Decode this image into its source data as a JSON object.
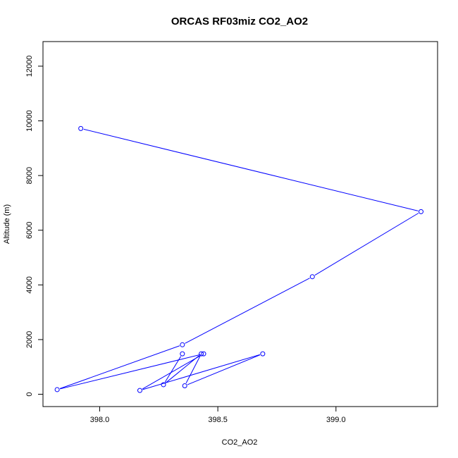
{
  "chart_data": {
    "type": "line",
    "title": "ORCAS RF03miz CO2_AO2",
    "xlabel": "CO2_AO2",
    "ylabel": "Altitude (m)",
    "xlim": [
      397.76,
      399.43
    ],
    "ylim": [
      -450,
      12900
    ],
    "x_ticks": [
      398.0,
      398.5,
      399.0
    ],
    "x_tick_labels": [
      "398.0",
      "398.5",
      "399.0"
    ],
    "y_ticks": [
      0,
      2000,
      4000,
      6000,
      8000,
      10000,
      12000
    ],
    "y_tick_labels": [
      "0",
      "2000",
      "4000",
      "6000",
      "8000",
      "10000",
      "12000"
    ],
    "grid": false,
    "markers": "open-circle",
    "color": "#0000ff",
    "series": [
      {
        "x": [
          397.92,
          399.36,
          398.9,
          398.35,
          397.82,
          398.44,
          398.17,
          398.69,
          398.36,
          398.43,
          398.27,
          398.35
        ],
        "y": [
          9720,
          6680,
          4300,
          1810,
          170,
          1480,
          140,
          1480,
          310,
          1480,
          350,
          1480
        ]
      }
    ]
  }
}
